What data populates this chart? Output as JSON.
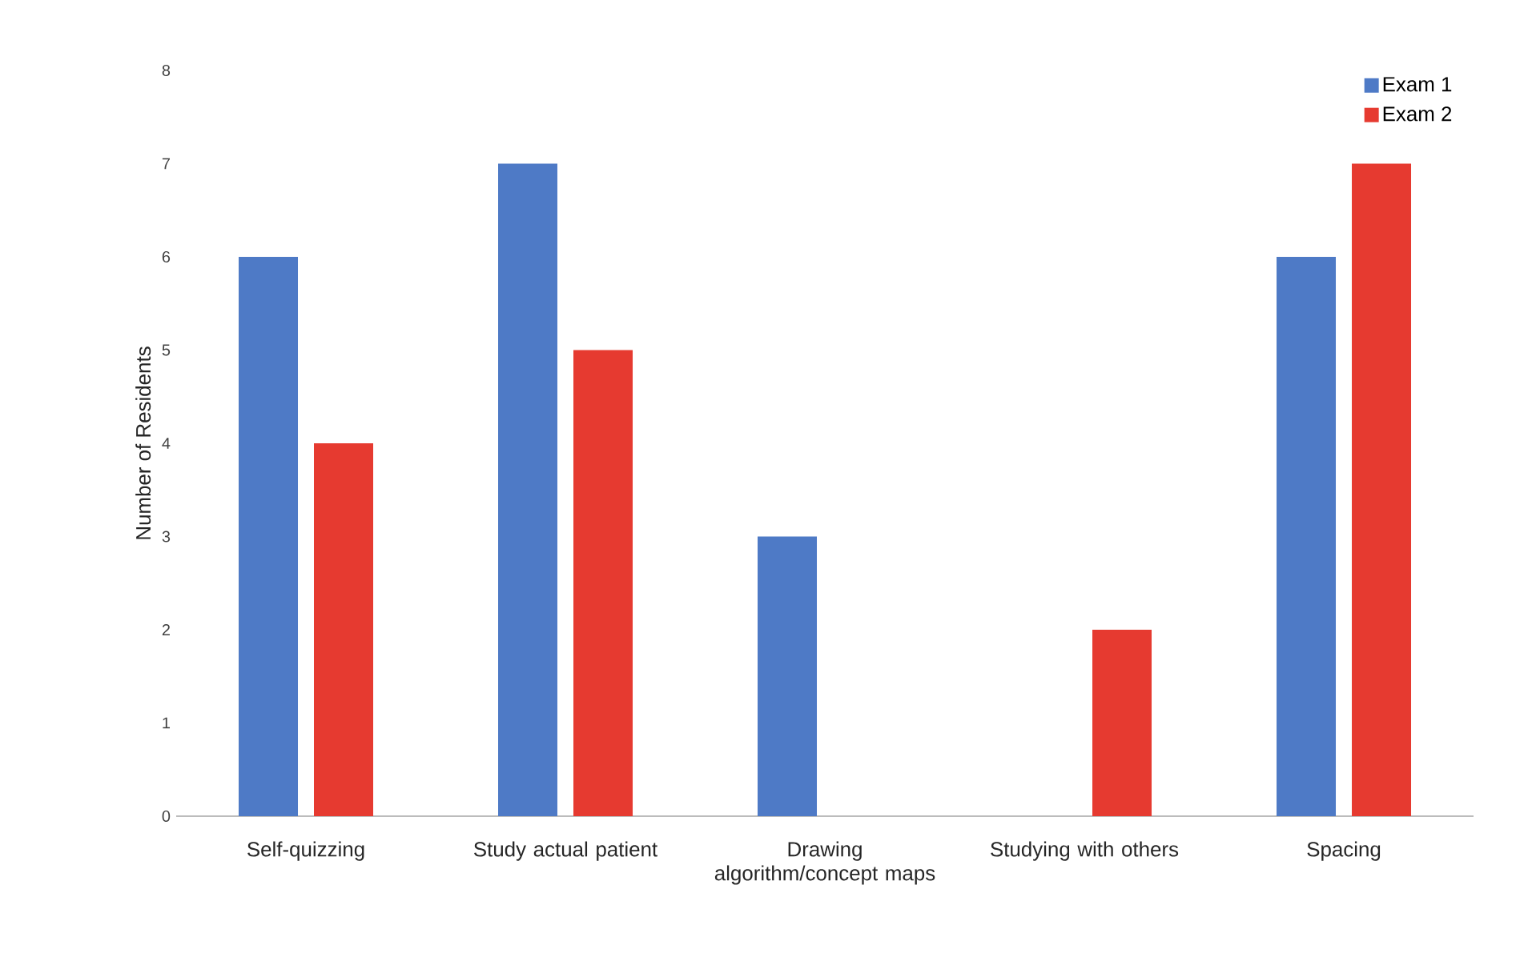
{
  "chart_data": {
    "type": "bar",
    "ylabel": "Number of Residents",
    "categories": [
      "Self-quizzing",
      "Study actual patient",
      "Drawing algorithm/concept maps",
      "Studying with others",
      "Spacing"
    ],
    "series": [
      {
        "name": "Exam 1",
        "color": "#4e7ac6",
        "values": [
          6,
          7,
          3,
          0,
          6
        ]
      },
      {
        "name": "Exam 2",
        "color": "#e63a30",
        "values": [
          4,
          5,
          0,
          2,
          7
        ]
      }
    ],
    "ylim": [
      0,
      8
    ],
    "yticks": [
      0,
      1,
      2,
      3,
      4,
      5,
      6,
      7,
      8
    ],
    "legend": "top right"
  }
}
